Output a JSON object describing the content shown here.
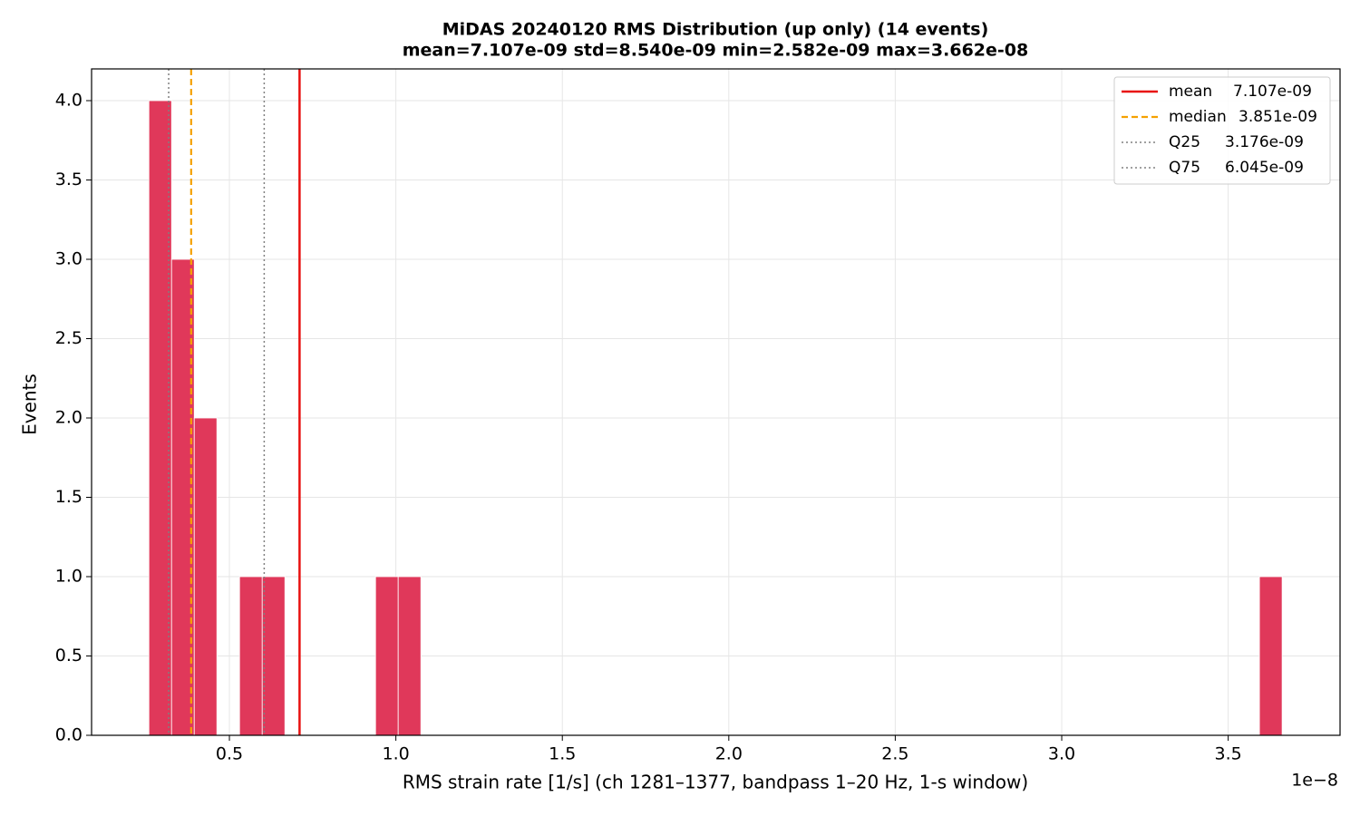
{
  "chart_data": {
    "type": "histogram",
    "title": "MiDAS 20240120  RMS Distribution  (up only)  (14 events)",
    "subtitle": "mean=7.107e-09  std=8.540e-09  min=2.582e-09  max=3.662e-08",
    "x_label": "RMS strain rate [1/s]  (ch 1281–1377, bandpass 1–20 Hz, 1-s window)",
    "y_label": "Events",
    "x_offset_label": "1e−8",
    "color": "#e0385a",
    "bins": [
      0.2582,
      0.3263,
      0.3944,
      0.4624,
      0.5305,
      0.5986,
      0.6667,
      0.7347,
      0.8028,
      0.8709,
      0.939,
      1.007,
      1.0751,
      1.1432,
      1.2113,
      1.2793,
      1.3474,
      1.4155,
      1.4836,
      1.5516,
      1.6197,
      1.6878,
      1.7559,
      1.8239,
      1.892,
      1.9601,
      2.0282,
      2.0962,
      2.1643,
      2.2324,
      2.3005,
      2.3685,
      2.4366,
      2.5047,
      2.5728,
      2.6408,
      2.7089,
      2.777,
      2.845,
      2.9131,
      2.9812,
      3.0493,
      3.1173,
      3.1854,
      3.2535,
      3.3216,
      3.3896,
      3.4577,
      3.5258,
      3.5939,
      3.662
    ],
    "values": [
      4,
      3,
      2,
      0,
      1,
      1,
      0,
      0,
      0,
      0,
      1,
      1,
      0,
      0,
      0,
      0,
      0,
      0,
      0,
      0,
      0,
      0,
      0,
      0,
      0,
      0,
      0,
      0,
      0,
      0,
      0,
      0,
      0,
      0,
      0,
      0,
      0,
      0,
      0,
      0,
      0,
      0,
      0,
      0,
      0,
      0,
      0,
      0,
      0,
      1
    ],
    "reference_lines": [
      {
        "name": "mean",
        "label": "7.107e-09",
        "value": 0.7107,
        "color": "#e8100f",
        "style": "solid"
      },
      {
        "name": "median",
        "label": "3.851e-09",
        "value": 0.3851,
        "color": "#f5a100",
        "style": "dashed"
      },
      {
        "name": "Q25",
        "label": "3.176e-09",
        "value": 0.3176,
        "color": "#808080",
        "style": "dotted"
      },
      {
        "name": "Q75",
        "label": "6.045e-09",
        "value": 0.6045,
        "color": "#808080",
        "style": "dotted"
      }
    ],
    "xlim": [
      0.086,
      3.836
    ],
    "ylim": [
      0,
      4.2
    ],
    "xticks": [
      0.5,
      {
        "value": 1,
        "label": "1.0"
      },
      1.5,
      {
        "value": 2,
        "label": "2.0"
      },
      2.5,
      {
        "value": 3,
        "label": "3.0"
      },
      3.5
    ],
    "yticks": [
      {
        "value": 0,
        "label": "0.0"
      },
      0.5,
      {
        "value": 1,
        "label": "1.0"
      },
      1.5,
      {
        "value": 2,
        "label": "2.0"
      },
      2.5,
      {
        "value": 3,
        "label": "3.0"
      },
      3.5,
      {
        "value": 4,
        "label": "4.0"
      }
    ],
    "grid": true,
    "legend": "upper right"
  }
}
